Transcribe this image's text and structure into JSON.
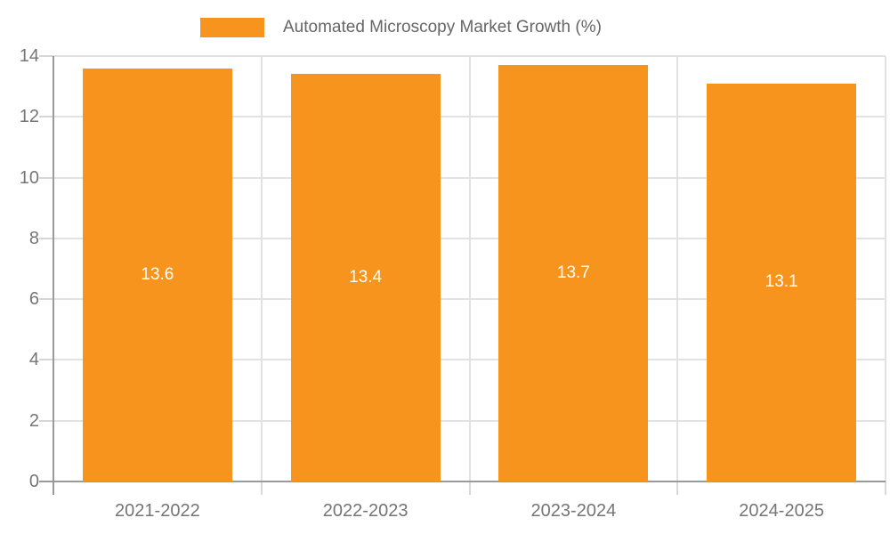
{
  "legend": {
    "label": "Automated Microscopy Market Growth (%)"
  },
  "colors": {
    "bar": "#F7941E",
    "grid": "#e2e2e2",
    "axis": "#9a9a9a",
    "tick_text": "#757575",
    "legend_text": "#666666",
    "value_text": "#ffffff"
  },
  "chart_data": {
    "type": "bar",
    "title": "",
    "categories": [
      "2021-2022",
      "2022-2023",
      "2023-2024",
      "2024-2025"
    ],
    "values": [
      13.6,
      13.4,
      13.7,
      13.1
    ],
    "value_labels": [
      "13.6",
      "13.4",
      "13.7",
      "13.1"
    ],
    "series": [
      {
        "name": "Automated Microscopy Market Growth (%)",
        "values": [
          13.6,
          13.4,
          13.7,
          13.1
        ]
      }
    ],
    "xlabel": "",
    "ylabel": "",
    "ylim": [
      0,
      14
    ],
    "yticks": [
      0,
      2,
      4,
      6,
      8,
      10,
      12,
      14
    ],
    "grid": true,
    "legend_position": "top",
    "value_label_position": "inside-center"
  }
}
